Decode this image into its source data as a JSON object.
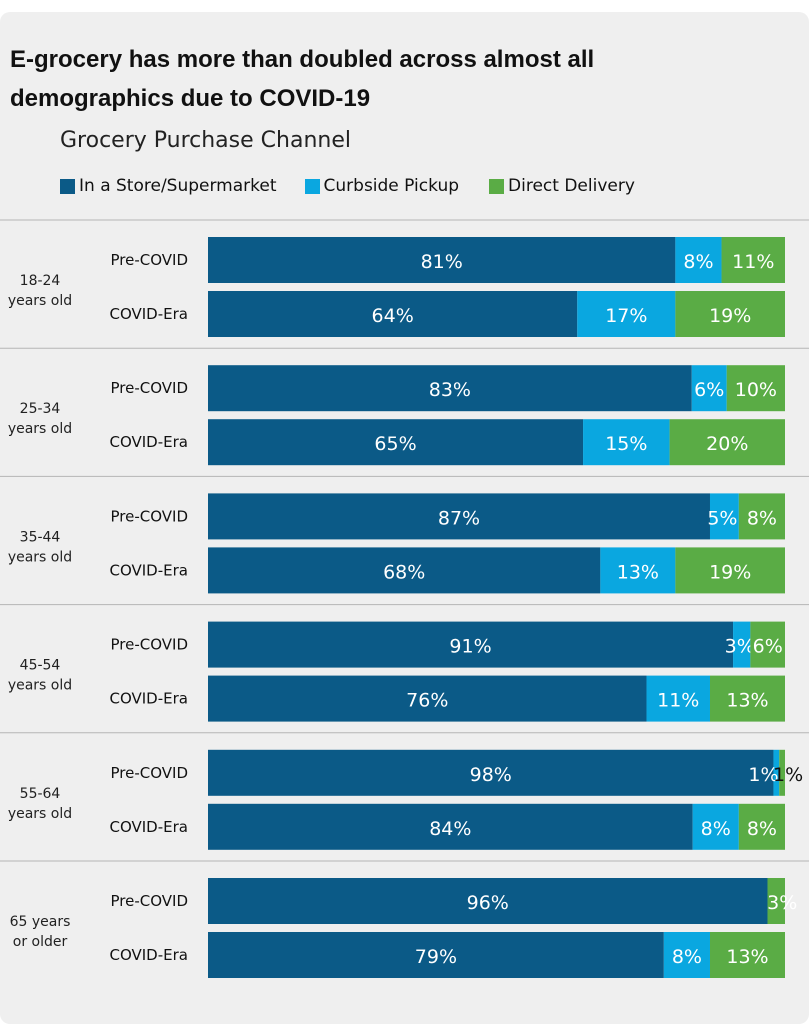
{
  "title_line1": "E-grocery has more than doubled across almost all",
  "title_line2": "demographics due to COVID-19",
  "subtitle": "Grocery Purchase Channel",
  "colors": {
    "store": "#0b5a87",
    "curbside": "#0aa7e0",
    "delivery": "#5aac45",
    "separator": "#b5b5b5"
  },
  "chart_data": {
    "type": "bar",
    "orientation": "horizontal-stacked-100",
    "xlim": [
      0,
      100
    ],
    "legend_position": "top-left",
    "series": [
      {
        "name": "In a Store/Supermarket",
        "color": "#0b5a87"
      },
      {
        "name": "Curbside Pickup",
        "color": "#0aa7e0"
      },
      {
        "name": "Direct Delivery",
        "color": "#5aac45"
      }
    ],
    "groups": [
      {
        "label": [
          "18-24",
          "years old"
        ],
        "rows": [
          {
            "period": "Pre-COVID",
            "values": [
              81,
              8,
              11
            ],
            "labels": [
              "81%",
              "8%",
              "11%"
            ]
          },
          {
            "period": "COVID-Era",
            "values": [
              64,
              17,
              19
            ],
            "labels": [
              "64%",
              "17%",
              "19%"
            ]
          }
        ]
      },
      {
        "label": [
          "25-34",
          "years old"
        ],
        "rows": [
          {
            "period": "Pre-COVID",
            "values": [
              83,
              6,
              10
            ],
            "labels": [
              "83%",
              "6%",
              "10%"
            ]
          },
          {
            "period": "COVID-Era",
            "values": [
              65,
              15,
              20
            ],
            "labels": [
              "65%",
              "15%",
              "20%"
            ]
          }
        ]
      },
      {
        "label": [
          "35-44",
          "years old"
        ],
        "rows": [
          {
            "period": "Pre-COVID",
            "values": [
              87,
              5,
              8
            ],
            "labels": [
              "87%",
              "5%",
              "8%"
            ]
          },
          {
            "period": "COVID-Era",
            "values": [
              68,
              13,
              19
            ],
            "labels": [
              "68%",
              "13%",
              "19%"
            ]
          }
        ]
      },
      {
        "label": [
          "45-54",
          "years old"
        ],
        "rows": [
          {
            "period": "Pre-COVID",
            "values": [
              91,
              3,
              6
            ],
            "labels": [
              "91%",
              "3%",
              "6%"
            ]
          },
          {
            "period": "COVID-Era",
            "values": [
              76,
              11,
              13
            ],
            "labels": [
              "76%",
              "11%",
              "13%"
            ]
          }
        ]
      },
      {
        "label": [
          "55-64",
          "years old"
        ],
        "rows": [
          {
            "period": "Pre-COVID",
            "values": [
              98,
              1,
              1
            ],
            "labels": [
              "98%",
              "1%",
              "1%"
            ]
          },
          {
            "period": "COVID-Era",
            "values": [
              84,
              8,
              8
            ],
            "labels": [
              "84%",
              "8%",
              "8%"
            ]
          }
        ]
      },
      {
        "label": [
          "65 years",
          "or older"
        ],
        "rows": [
          {
            "period": "Pre-COVID",
            "values": [
              96,
              0,
              3
            ],
            "labels": [
              "96%",
              "",
              "3%"
            ]
          },
          {
            "period": "COVID-Era",
            "values": [
              79,
              8,
              13
            ],
            "labels": [
              "79%",
              "8%",
              "13%"
            ]
          }
        ]
      }
    ]
  }
}
